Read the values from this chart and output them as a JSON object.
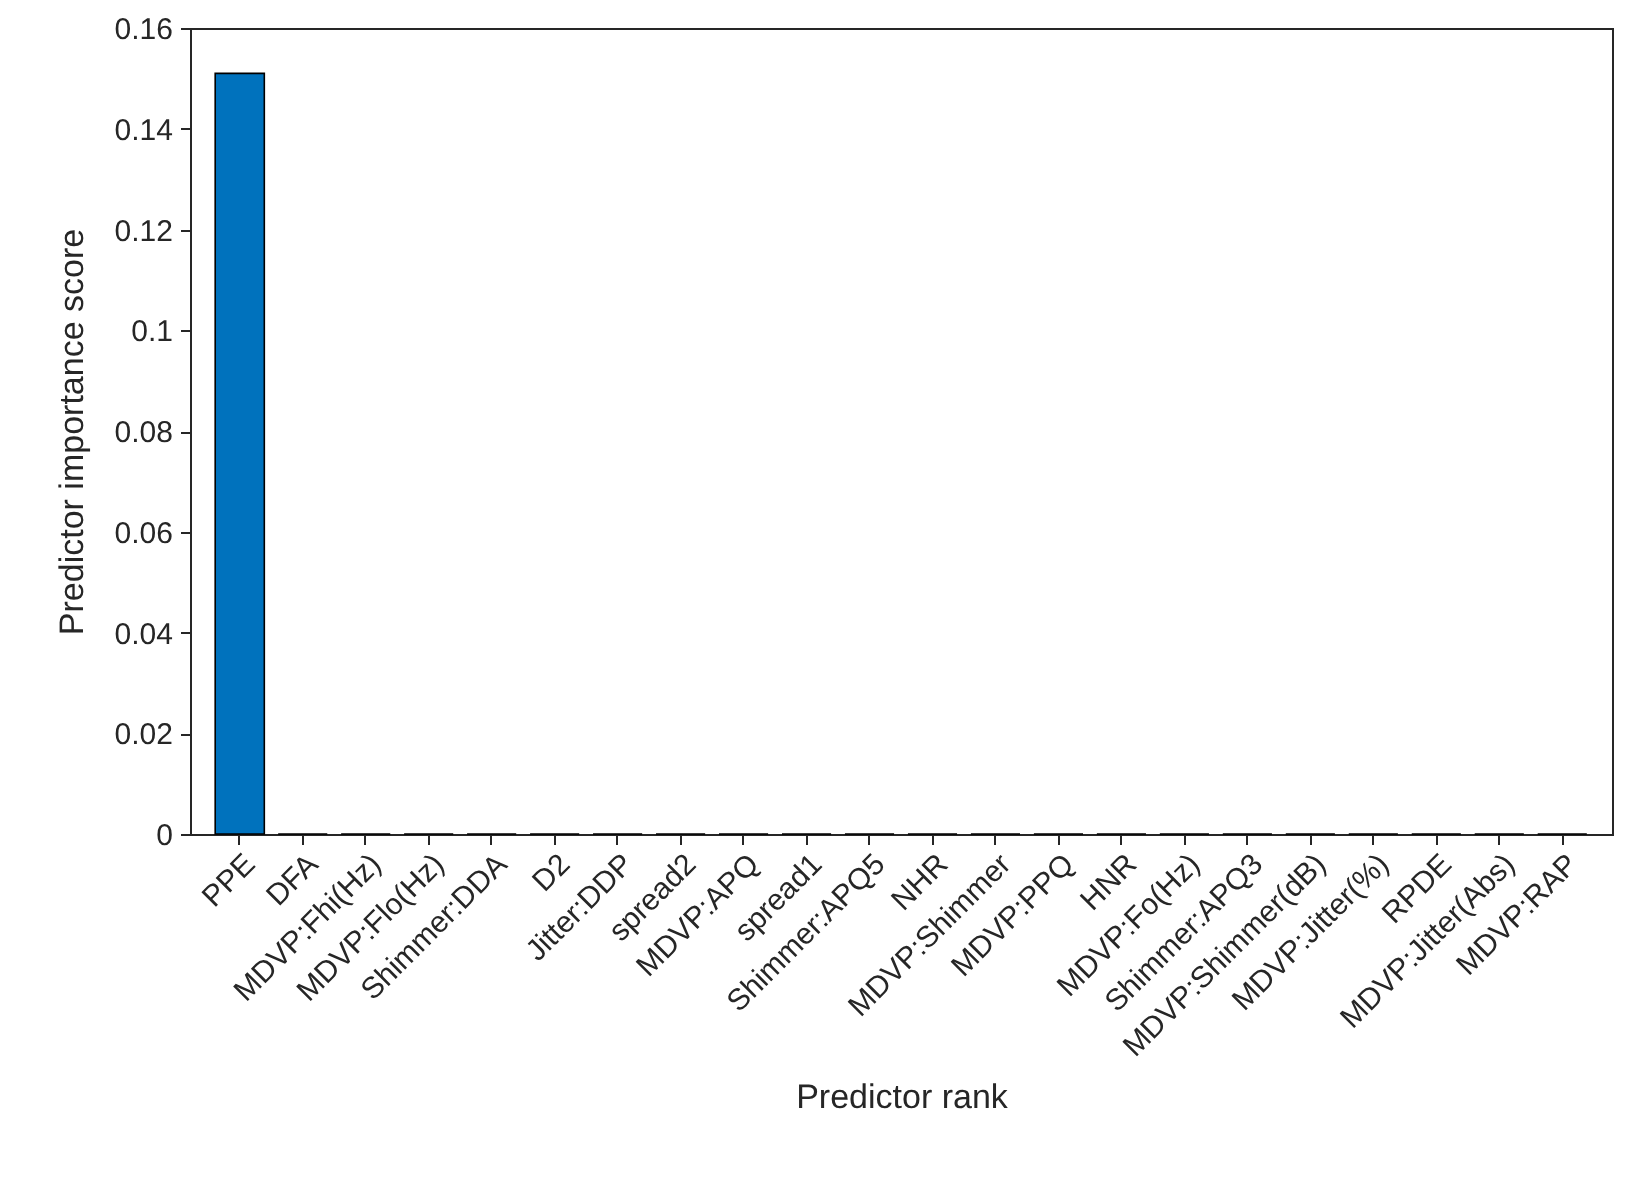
{
  "chart_data": {
    "type": "bar",
    "categories": [
      "PPE",
      "DFA",
      "MDVP:Fhi(Hz)",
      "MDVP:Flo(Hz)",
      "Shimmer:DDA",
      "D2",
      "Jitter:DDP",
      "spread2",
      "MDVP:APQ",
      "spread1",
      "Shimmer:APQ5",
      "NHR",
      "MDVP:Shimmer",
      "MDVP:PPQ",
      "HNR",
      "MDVP:Fo(Hz)",
      "Shimmer:APQ3",
      "MDVP:Shimmer(dB)",
      "MDVP:Jitter(%)",
      "RPDE",
      "MDVP:Jitter(Abs)",
      "MDVP:RAP"
    ],
    "values": [
      0.151,
      0,
      0,
      0,
      0,
      0,
      0,
      0,
      0,
      0,
      0,
      0,
      0,
      0,
      0,
      0,
      0,
      0,
      0,
      0,
      0,
      0
    ],
    "color": "#0072bd",
    "xlabel": "Predictor rank",
    "ylabel": "Predictor importance score",
    "ylim": [
      0,
      0.16
    ],
    "yticks": [
      0,
      0.02,
      0.04,
      0.06,
      0.08,
      0.1,
      0.12,
      0.14,
      0.16
    ],
    "grid": false
  }
}
